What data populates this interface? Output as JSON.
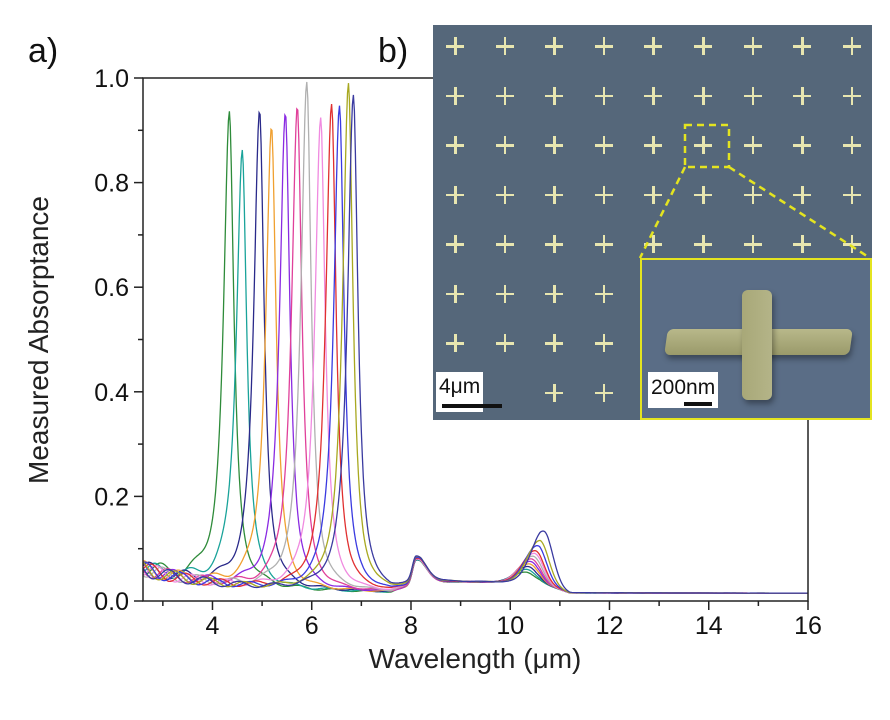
{
  "panel_labels": {
    "a": "a)",
    "b": "b)"
  },
  "chart_data": {
    "type": "line",
    "xlabel": "Wavelength (μm)",
    "ylabel": "Measured Absorptance",
    "xlim": [
      2.6,
      16
    ],
    "ylim": [
      0,
      1.0
    ],
    "xticks": [
      "4",
      "6",
      "8",
      "10",
      "12",
      "14",
      "16"
    ],
    "yticks": [
      "0.0",
      "0.2",
      "0.4",
      "0.6",
      "0.8",
      "1.0"
    ],
    "grid": false,
    "legend": "none",
    "common_features": {
      "peak_um": 8.1,
      "peak_absorptance": 0.07,
      "long_wavelength_absorptance": 0.015
    },
    "series": [
      {
        "color": "#2e8b3a",
        "peak_um": 4.34,
        "peak_absorptance": 0.93,
        "second_peak_um": 10.3,
        "second_peak_absorptance": 0.06
      },
      {
        "color": "#1aa39a",
        "peak_um": 4.6,
        "peak_absorptance": 0.87,
        "second_peak_um": 10.32,
        "second_peak_absorptance": 0.065
      },
      {
        "color": "#2a2a8a",
        "peak_um": 4.95,
        "peak_absorptance": 0.94,
        "second_peak_um": 10.35,
        "second_peak_absorptance": 0.07
      },
      {
        "color": "#f0a030",
        "peak_um": 5.19,
        "peak_absorptance": 0.915,
        "second_peak_um": 10.38,
        "second_peak_absorptance": 0.075
      },
      {
        "color": "#8a2be2",
        "peak_um": 5.47,
        "peak_absorptance": 0.94,
        "second_peak_um": 10.4,
        "second_peak_absorptance": 0.08
      },
      {
        "color": "#e0409a",
        "peak_um": 5.71,
        "peak_absorptance": 0.955,
        "second_peak_um": 10.42,
        "second_peak_absorptance": 0.085
      },
      {
        "color": "#b0b0b0",
        "peak_um": 5.9,
        "peak_absorptance": 1.0,
        "second_peak_um": 10.45,
        "second_peak_absorptance": 0.09
      },
      {
        "color": "#f08ae0",
        "peak_um": 6.18,
        "peak_absorptance": 0.935,
        "second_peak_um": 10.48,
        "second_peak_absorptance": 0.095
      },
      {
        "color": "#e03030",
        "peak_um": 6.4,
        "peak_absorptance": 0.96,
        "second_peak_um": 10.5,
        "second_peak_absorptance": 0.1
      },
      {
        "color": "#3a3ae0",
        "peak_um": 6.56,
        "peak_absorptance": 0.96,
        "second_peak_um": 10.55,
        "second_peak_absorptance": 0.11
      },
      {
        "color": "#a8a820",
        "peak_um": 6.74,
        "peak_absorptance": 1.0,
        "second_peak_um": 10.6,
        "second_peak_absorptance": 0.12
      },
      {
        "color": "#3a3aa0",
        "peak_um": 6.84,
        "peak_absorptance": 0.98,
        "second_peak_um": 10.68,
        "second_peak_absorptance": 0.14
      }
    ]
  },
  "sem_image": {
    "scale_bar_main": "4μm",
    "scale_bar_inset": "200nm",
    "background_color": "#55677a",
    "highlight_color": "#e4e420"
  }
}
